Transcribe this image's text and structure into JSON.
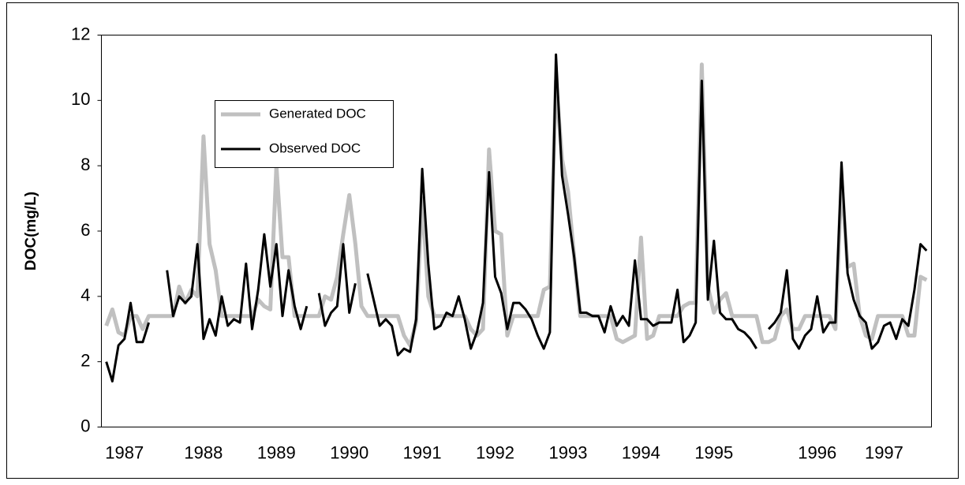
{
  "chart_data": {
    "type": "line",
    "y_label": "DOC(mg/L)",
    "x": [
      0,
      1,
      2,
      3,
      4,
      5,
      6,
      7,
      8,
      9,
      10,
      11,
      12,
      13,
      14,
      15,
      16,
      17,
      18,
      19,
      20,
      21,
      22,
      23,
      24,
      25,
      26,
      27,
      28,
      29,
      30,
      31,
      32,
      33,
      34,
      35,
      36,
      37,
      38,
      39,
      40,
      41,
      42,
      43,
      44,
      45,
      46,
      47,
      48,
      49,
      50,
      51,
      52,
      53,
      54,
      55,
      56,
      57,
      58,
      59,
      60,
      61,
      62,
      63,
      64,
      65,
      66,
      67,
      68,
      69,
      70,
      71,
      72,
      73,
      74,
      75,
      76,
      77,
      78,
      79,
      80,
      81,
      82,
      83,
      84,
      85,
      86,
      87,
      88,
      89,
      90,
      91,
      92,
      93,
      94,
      95,
      96,
      97,
      98,
      99,
      100,
      101,
      102,
      103,
      104,
      105,
      106,
      107,
      108,
      109,
      110,
      111,
      112,
      113,
      114,
      115,
      116,
      117,
      118,
      119,
      120,
      121,
      122,
      123,
      124,
      125,
      126,
      127,
      128,
      129,
      130,
      131,
      132,
      133,
      134,
      135
    ],
    "series": [
      {
        "name": "Generated DOC",
        "color": "#c0c0c0",
        "width": 5,
        "values": [
          3.1,
          3.6,
          2.9,
          2.8,
          3.4,
          3.4,
          3.0,
          3.4,
          3.4,
          3.4,
          3.4,
          3.4,
          4.3,
          3.8,
          4.2,
          4.0,
          8.9,
          5.6,
          4.8,
          3.4,
          3.4,
          3.4,
          3.4,
          3.4,
          3.4,
          3.9,
          3.7,
          3.6,
          8.0,
          5.2,
          5.2,
          3.4,
          3.4,
          3.4,
          3.4,
          3.4,
          4.0,
          3.9,
          4.6,
          5.9,
          7.1,
          5.6,
          3.7,
          3.4,
          3.4,
          3.4,
          3.4,
          3.4,
          3.4,
          2.8,
          2.5,
          3.2,
          7.0,
          4.0,
          3.4,
          3.4,
          3.4,
          3.4,
          3.4,
          3.4,
          3.0,
          2.8,
          3.0,
          8.5,
          6.0,
          5.9,
          2.8,
          3.4,
          3.4,
          3.4,
          3.4,
          3.4,
          4.2,
          4.3,
          10.6,
          8.2,
          7.2,
          5.2,
          3.4,
          3.4,
          3.4,
          3.4,
          3.4,
          3.4,
          2.7,
          2.6,
          2.7,
          2.8,
          5.8,
          2.7,
          2.8,
          3.4,
          3.4,
          3.4,
          3.4,
          3.7,
          3.8,
          3.8,
          11.1,
          4.3,
          3.5,
          3.9,
          4.1,
          3.4,
          3.4,
          3.4,
          3.4,
          3.4,
          2.6,
          2.6,
          2.7,
          3.4,
          3.6,
          3.0,
          3.0,
          3.4,
          3.4,
          3.4,
          3.4,
          3.4,
          3.0,
          7.6,
          4.9,
          5.0,
          3.4,
          2.8,
          2.7,
          3.4,
          3.4,
          3.4,
          3.4,
          3.4,
          2.8,
          2.8,
          4.6,
          4.5
        ]
      },
      {
        "name": "Observed DOC",
        "color": "#000000",
        "width": 3,
        "values": [
          2.0,
          1.4,
          2.5,
          2.7,
          3.8,
          2.6,
          2.6,
          3.2,
          null,
          null,
          4.8,
          3.4,
          4.0,
          3.8,
          4.0,
          5.6,
          2.7,
          3.3,
          2.8,
          4.0,
          3.1,
          3.3,
          3.2,
          5.0,
          3.0,
          4.2,
          5.9,
          4.3,
          5.6,
          3.4,
          4.8,
          3.7,
          3.0,
          3.7,
          null,
          4.1,
          3.1,
          3.5,
          3.7,
          5.6,
          3.5,
          4.4,
          null,
          4.7,
          3.9,
          3.1,
          3.3,
          3.1,
          2.2,
          2.4,
          2.3,
          3.3,
          7.9,
          5.0,
          3.0,
          3.1,
          3.5,
          3.4,
          4.0,
          3.3,
          2.4,
          2.9,
          3.8,
          7.8,
          4.6,
          4.1,
          3.0,
          3.8,
          3.8,
          3.6,
          3.3,
          2.8,
          2.4,
          2.9,
          11.4,
          7.7,
          6.5,
          5.2,
          3.5,
          3.5,
          3.4,
          3.4,
          2.9,
          3.7,
          3.1,
          3.4,
          3.1,
          5.1,
          3.3,
          3.3,
          3.1,
          3.2,
          3.2,
          3.2,
          4.2,
          2.6,
          2.8,
          3.2,
          10.6,
          3.9,
          5.7,
          3.5,
          3.3,
          3.3,
          3.0,
          2.9,
          2.7,
          2.4,
          null,
          3.0,
          3.2,
          3.5,
          4.8,
          2.7,
          2.4,
          2.8,
          3.0,
          4.0,
          2.9,
          3.2,
          3.2,
          8.1,
          4.7,
          3.9,
          3.4,
          3.2,
          2.4,
          2.6,
          3.1,
          3.2,
          2.7,
          3.3,
          3.1,
          4.2,
          5.6,
          5.4
        ]
      }
    ],
    "xlim": [
      -0.8,
      135.8
    ],
    "xticks": [
      {
        "value": 3,
        "label": "1987"
      },
      {
        "value": 16,
        "label": "1988"
      },
      {
        "value": 28,
        "label": "1989"
      },
      {
        "value": 40,
        "label": "1990"
      },
      {
        "value": 52,
        "label": "1991"
      },
      {
        "value": 64,
        "label": "1992"
      },
      {
        "value": 76,
        "label": "1993"
      },
      {
        "value": 88,
        "label": "1994"
      },
      {
        "value": 100,
        "label": "1995"
      },
      {
        "value": 117,
        "label": "1996"
      },
      {
        "value": 128,
        "label": "1997"
      }
    ],
    "ylim": [
      0,
      12
    ],
    "yticks": [
      0,
      2,
      4,
      6,
      8,
      10,
      12
    ],
    "grid": false
  }
}
